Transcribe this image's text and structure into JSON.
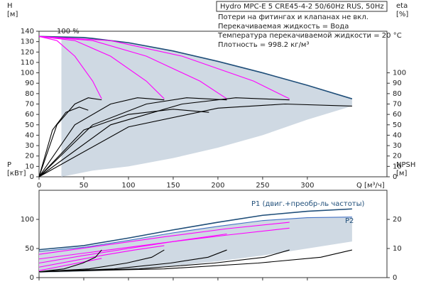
{
  "chart_data": [
    {
      "type": "line",
      "title": "Hydro MPC-E 5 CRE45-4-2 50/60Hz RUS, 50Hz",
      "notes": [
        "Потери на фитингах и клапанах не вкл.",
        "Перекачиваемая жидкость = Вода",
        "Температура перекачиваемой жидкости = 20 °C",
        "Плотность = 998.2 кг/м³"
      ],
      "annotations": [
        "100 %"
      ],
      "y_label": [
        "H",
        "[м]"
      ],
      "y2_label": [
        "eta",
        "[%]"
      ],
      "x_label": "Q [м³/ч]",
      "xlim": [
        0,
        389
      ],
      "xticks": [
        0,
        50,
        100,
        150,
        200,
        250,
        300
      ],
      "ylim": [
        0,
        140
      ],
      "yticks": [
        0,
        10,
        20,
        30,
        40,
        50,
        60,
        70,
        80,
        90,
        100,
        110,
        120,
        130,
        140
      ],
      "y2lim": [
        0,
        140
      ],
      "y2ticks": [
        0,
        10,
        20,
        30,
        40,
        50,
        60,
        70,
        80,
        90,
        100
      ],
      "series": [
        {
          "color": "#cfd9e3",
          "x": [
            25,
            60,
            100,
            150,
            200,
            250,
            300,
            350
          ],
          "values": [
            135,
            134,
            129,
            121,
            111,
            100,
            88,
            75
          ],
          "lower": [
            0,
            6,
            10,
            18,
            28,
            40,
            55,
            68
          ]
        },
        {
          "color": "#1f4e79",
          "x": [
            0,
            50,
            100,
            150,
            200,
            250,
            300,
            350
          ],
          "values": [
            135,
            134,
            129,
            121,
            111,
            100,
            88,
            75
          ]
        },
        {
          "color": "#ff00ff",
          "x": [
            0,
            20,
            40,
            60,
            70
          ],
          "values": [
            135,
            131,
            116,
            92,
            75
          ]
        },
        {
          "color": "#ff00ff",
          "x": [
            0,
            40,
            80,
            120,
            140
          ],
          "values": [
            135,
            131,
            116,
            92,
            75
          ]
        },
        {
          "color": "#ff00ff",
          "x": [
            0,
            60,
            120,
            180,
            210
          ],
          "values": [
            135,
            131,
            116,
            92,
            75
          ]
        },
        {
          "color": "#ff00ff",
          "x": [
            0,
            80,
            160,
            240,
            280
          ],
          "values": [
            135,
            131,
            116,
            92,
            75
          ]
        },
        {
          "color": "#000000",
          "axis": "y2",
          "x": [
            0,
            20,
            40,
            55,
            70
          ],
          "values": [
            0,
            50,
            70,
            76,
            74
          ]
        },
        {
          "color": "#000000",
          "axis": "y2",
          "x": [
            0,
            40,
            80,
            110,
            140
          ],
          "values": [
            0,
            50,
            70,
            76,
            74
          ]
        },
        {
          "color": "#000000",
          "axis": "y2",
          "x": [
            0,
            60,
            120,
            165,
            210
          ],
          "values": [
            0,
            50,
            70,
            76,
            74
          ]
        },
        {
          "color": "#000000",
          "axis": "y2",
          "x": [
            0,
            80,
            160,
            220,
            280
          ],
          "values": [
            0,
            50,
            70,
            76,
            74
          ]
        },
        {
          "color": "#000000",
          "axis": "y2",
          "x": [
            0,
            100,
            200,
            275,
            350
          ],
          "values": [
            0,
            48,
            66,
            70,
            68
          ]
        },
        {
          "color": "#000000",
          "axis": "y2",
          "x": [
            0,
            15,
            30,
            45,
            55
          ],
          "values": [
            0,
            45,
            62,
            67,
            64
          ]
        },
        {
          "color": "#000000",
          "axis": "y2",
          "x": [
            0,
            50,
            100,
            150,
            190
          ],
          "values": [
            0,
            45,
            60,
            65,
            62
          ]
        }
      ]
    },
    {
      "type": "line",
      "annotations": [
        "P1 (двиг.+преобр-ль частоты)",
        "P2"
      ],
      "y_label": [
        "P",
        "[кВт]"
      ],
      "y2_label": [
        "NPSH",
        "[м]"
      ],
      "xlim": [
        0,
        389
      ],
      "xticks": [
        0,
        50,
        100,
        150,
        200,
        250,
        300
      ],
      "ylim": [
        0,
        150
      ],
      "yticks": [
        0,
        50,
        100
      ],
      "y2lim": [
        0,
        30
      ],
      "y2ticks": [
        0,
        10,
        20
      ],
      "series": [
        {
          "color": "#cfd9e3",
          "x": [
            0,
            50,
            100,
            150,
            200,
            250,
            300,
            350
          ],
          "values": [
            45,
            52,
            64,
            77,
            88,
            98,
            103,
            104
          ],
          "lower": [
            8,
            10,
            14,
            20,
            28,
            38,
            50,
            62
          ]
        },
        {
          "color": "#1f4e79",
          "x": [
            0,
            50,
            100,
            150,
            200,
            250,
            300,
            350
          ],
          "values": [
            48,
            55,
            68,
            82,
            95,
            107,
            114,
            118
          ]
        },
        {
          "color": "#4472c4",
          "x": [
            0,
            50,
            100,
            150,
            200,
            250,
            300,
            350
          ],
          "values": [
            45,
            52,
            64,
            77,
            88,
            98,
            103,
            104
          ]
        },
        {
          "color": "#ff00ff",
          "x": [
            0,
            70,
            140,
            210,
            280
          ],
          "values": [
            40,
            55,
            70,
            84,
            95
          ]
        },
        {
          "color": "#ff00ff",
          "x": [
            0,
            70,
            140,
            210,
            280
          ],
          "values": [
            32,
            46,
            60,
            73,
            85
          ]
        },
        {
          "color": "#ff00ff",
          "x": [
            0,
            50,
            100,
            150,
            210
          ],
          "values": [
            25,
            38,
            50,
            62,
            75
          ]
        },
        {
          "color": "#ff00ff",
          "x": [
            0,
            35,
            70,
            105,
            140
          ],
          "values": [
            18,
            28,
            38,
            47,
            55
          ]
        },
        {
          "color": "#ff00ff",
          "x": [
            0,
            20,
            40,
            60,
            70
          ],
          "values": [
            12,
            18,
            24,
            30,
            33
          ]
        },
        {
          "color": "#000000",
          "axis": "y2",
          "x": [
            0,
            28,
            49,
            63,
            70
          ],
          "values": [
            2,
            3,
            5,
            7,
            9.5
          ]
        },
        {
          "color": "#000000",
          "axis": "y2",
          "x": [
            0,
            56,
            98,
            126,
            140
          ],
          "values": [
            2,
            3,
            5,
            7,
            9.5
          ]
        },
        {
          "color": "#000000",
          "axis": "y2",
          "x": [
            0,
            84,
            147,
            189,
            210
          ],
          "values": [
            2,
            3,
            5,
            7,
            9.5
          ]
        },
        {
          "color": "#000000",
          "axis": "y2",
          "x": [
            0,
            112,
            196,
            252,
            280
          ],
          "values": [
            2,
            3,
            5,
            7,
            9.5
          ]
        },
        {
          "color": "#000000",
          "axis": "y2",
          "x": [
            0,
            140,
            245,
            315,
            350
          ],
          "values": [
            2,
            3,
            5,
            7,
            9.5
          ]
        }
      ]
    }
  ]
}
